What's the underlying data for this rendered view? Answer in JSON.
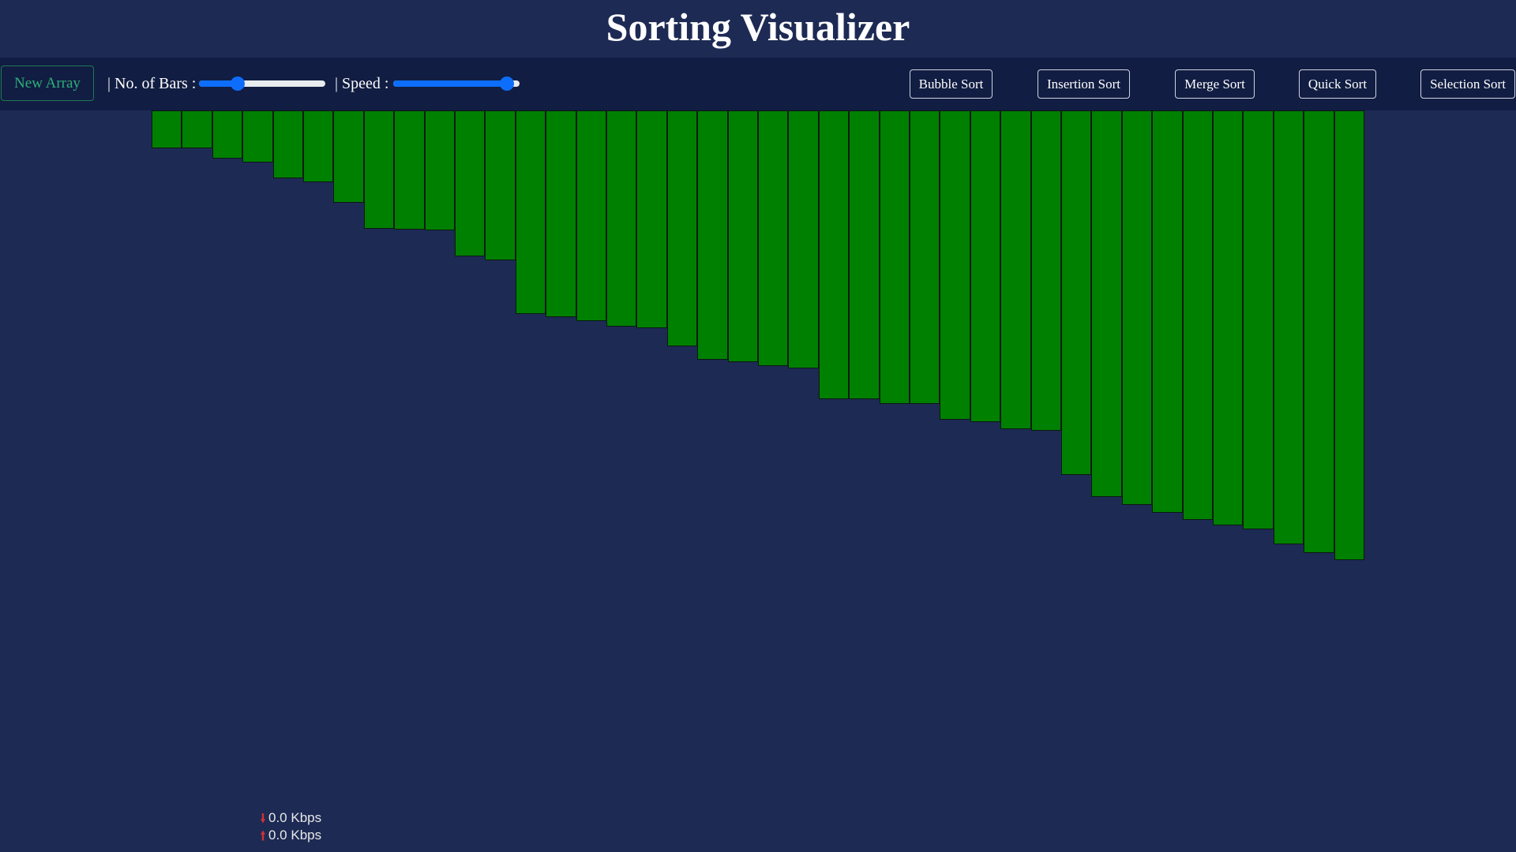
{
  "header": {
    "title": "Sorting Visualizer"
  },
  "toolbar": {
    "new_array_label": "New Array",
    "bars_label": "| No. of Bars :",
    "bars_slider_value": 0.28,
    "speed_label": "| Speed :",
    "speed_slider_value": 0.95,
    "algorithms": [
      {
        "label": "Bubble Sort"
      },
      {
        "label": "Insertion Sort"
      },
      {
        "label": "Merge Sort"
      },
      {
        "label": "Quick Sort"
      },
      {
        "label": "Selection Sort"
      }
    ]
  },
  "bars": {
    "color": "#008000",
    "values": [
      48,
      48,
      61,
      66,
      86,
      91,
      117,
      150,
      151,
      152,
      185,
      190,
      258,
      262,
      267,
      274,
      276,
      299,
      316,
      319,
      324,
      327,
      366,
      366,
      372,
      372,
      392,
      395,
      404,
      406,
      462,
      490,
      500,
      510,
      519,
      526,
      531,
      550,
      561,
      570
    ]
  },
  "network": {
    "download": "0.0 Kbps",
    "upload": "0.0 Kbps"
  }
}
